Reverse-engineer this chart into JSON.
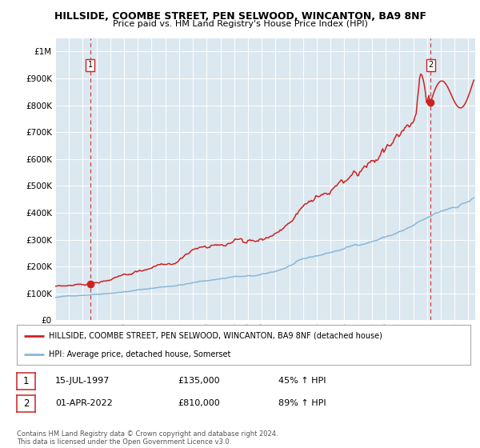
{
  "title": "HILLSIDE, COOMBE STREET, PEN SELWOOD, WINCANTON, BA9 8NF",
  "subtitle": "Price paid vs. HM Land Registry's House Price Index (HPI)",
  "bg_color": "#dce8f0",
  "red_line_label": "HILLSIDE, COOMBE STREET, PEN SELWOOD, WINCANTON, BA9 8NF (detached house)",
  "blue_line_label": "HPI: Average price, detached house, Somerset",
  "ann1_date_x": 1997.54,
  "ann1_y": 135000,
  "ann1_date_str": "15-JUL-1997",
  "ann1_price": "£135,000",
  "ann1_hpi": "45% ↑ HPI",
  "ann2_date_x": 2022.25,
  "ann2_y": 810000,
  "ann2_date_str": "01-APR-2022",
  "ann2_price": "£810,000",
  "ann2_hpi": "89% ↑ HPI",
  "xlim": [
    1995.0,
    2025.5
  ],
  "ylim": [
    0,
    1050000
  ],
  "yticks": [
    0,
    100000,
    200000,
    300000,
    400000,
    500000,
    600000,
    700000,
    800000,
    900000,
    1000000
  ],
  "ytick_labels": [
    "£0",
    "£100K",
    "£200K",
    "£300K",
    "£400K",
    "£500K",
    "£600K",
    "£700K",
    "£800K",
    "£900K",
    "£1M"
  ],
  "footer": "Contains HM Land Registry data © Crown copyright and database right 2024.\nThis data is licensed under the Open Government Licence v3.0.",
  "red_color": "#cc2222",
  "blue_color": "#88b8d8"
}
